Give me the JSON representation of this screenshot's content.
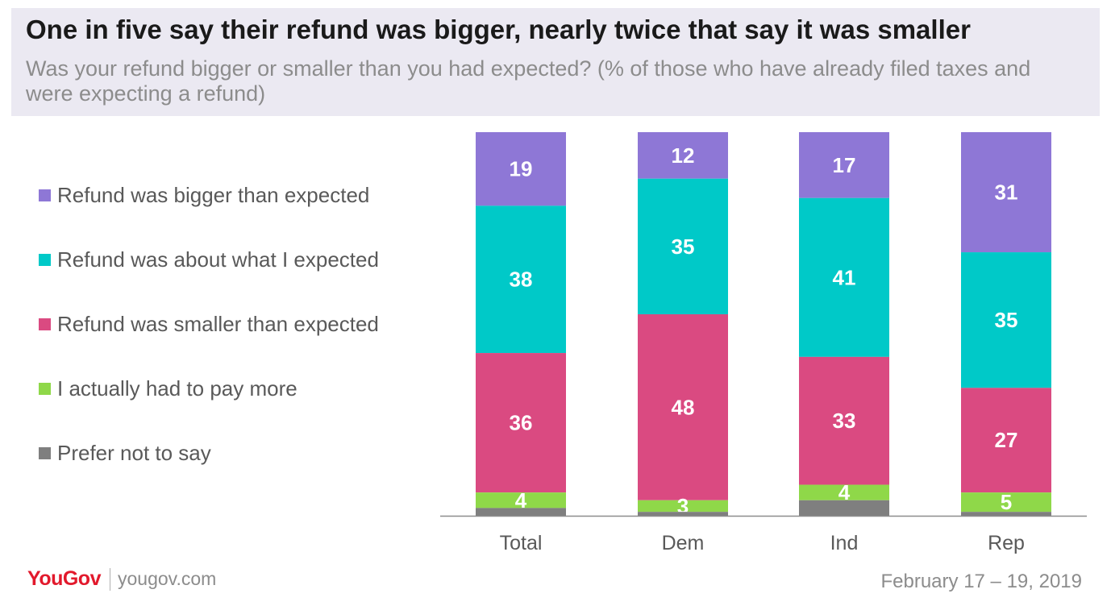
{
  "header": {
    "title": "One in five say their refund was bigger, nearly twice that say it was smaller",
    "subtitle": "Was your refund bigger or smaller than you had expected? (% of those who have already filed taxes and were expecting a refund)"
  },
  "chart_data": {
    "type": "bar",
    "stacked": true,
    "title": "One in five say their refund was bigger, nearly twice that say it was smaller",
    "subtitle": "Was your refund bigger or smaller than you had expected? (% of those who have already filed taxes and were expecting a refund)",
    "categories": [
      "Total",
      "Dem",
      "Ind",
      "Rep"
    ],
    "series": [
      {
        "name": "Refund was bigger than expected",
        "color": "#8e77d6",
        "values": [
          19,
          12,
          17,
          31
        ]
      },
      {
        "name": "Refund was about what I expected",
        "color": "#00c9c8",
        "values": [
          38,
          35,
          41,
          35
        ]
      },
      {
        "name": "Refund was smaller than expected",
        "color": "#da4a81",
        "values": [
          36,
          48,
          33,
          27
        ]
      },
      {
        "name": "I actually had to pay more",
        "color": "#8fd849",
        "values": [
          4,
          3,
          4,
          5
        ]
      },
      {
        "name": "Prefer not to say",
        "color": "#7f7f7f",
        "values": [
          2,
          1,
          4,
          1
        ]
      }
    ],
    "data_labels": [
      [
        "19",
        "12",
        "17",
        "31"
      ],
      [
        "38",
        "35",
        "41",
        "35"
      ],
      [
        "36",
        "48",
        "33",
        "27"
      ],
      [
        "4",
        "3",
        "4",
        "5"
      ],
      [
        "",
        "",
        "",
        ""
      ]
    ],
    "ylim": [
      0,
      100
    ],
    "legend": "left",
    "grid": false,
    "xlabel": "",
    "ylabel": ""
  },
  "footer": {
    "brand": "YouGov",
    "url": "yougov.com",
    "date": "February 17 – 19, 2019"
  }
}
